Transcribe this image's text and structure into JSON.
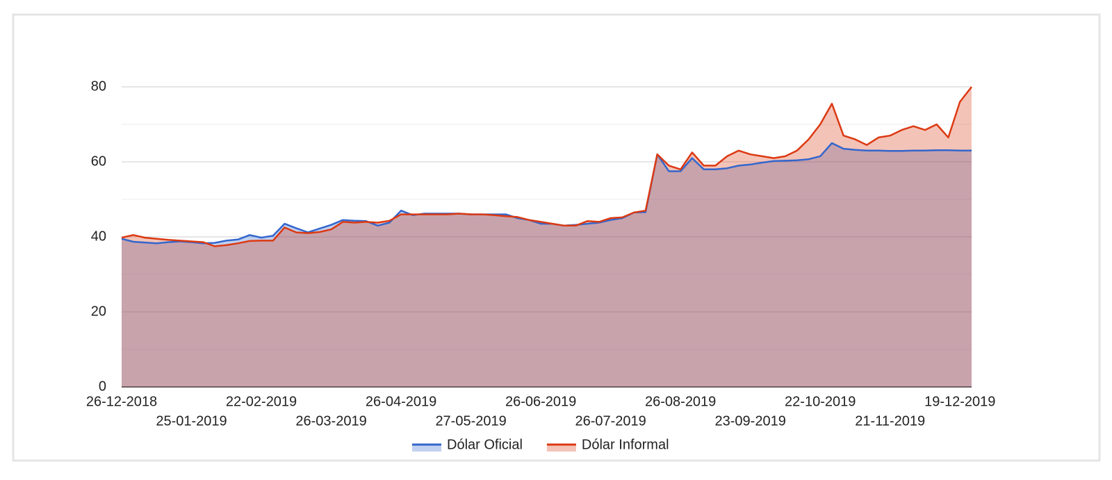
{
  "chart_data": {
    "type": "area",
    "categories": [
      "26-12-2018",
      null,
      null,
      null,
      null,
      null,
      "25-01-2019",
      null,
      null,
      null,
      null,
      null,
      "22-02-2019",
      null,
      null,
      null,
      null,
      null,
      "26-03-2019",
      null,
      null,
      null,
      null,
      null,
      "26-04-2019",
      null,
      null,
      null,
      null,
      null,
      "27-05-2019",
      null,
      null,
      null,
      null,
      null,
      "26-06-2019",
      null,
      null,
      null,
      null,
      null,
      "26-07-2019",
      null,
      null,
      null,
      null,
      null,
      "26-08-2019",
      null,
      null,
      null,
      null,
      null,
      "23-09-2019",
      null,
      null,
      null,
      null,
      null,
      "22-10-2019",
      null,
      null,
      null,
      null,
      null,
      "21-11-2019",
      null,
      null,
      null,
      null,
      null,
      "19-12-2019",
      null
    ],
    "series": [
      {
        "name": "Dólar Oficial",
        "color": "#3366cc",
        "values": [
          39.5,
          38.7,
          38.5,
          38.3,
          38.6,
          38.8,
          38.6,
          38.3,
          38.4,
          39,
          39.3,
          40.5,
          39.8,
          40.3,
          43.5,
          42.3,
          41.2,
          42.2,
          43.2,
          44.5,
          44.3,
          44.2,
          43,
          43.8,
          47,
          45.8,
          46.2,
          46.2,
          46.2,
          46.2,
          46,
          46,
          46,
          46,
          45,
          44.5,
          43.5,
          43.5,
          43,
          43.2,
          43.5,
          43.8,
          44.5,
          45,
          46.5,
          46.6,
          62,
          57.5,
          57.5,
          61,
          58,
          58,
          58.3,
          59,
          59.3,
          59.8,
          60.2,
          60.3,
          60.4,
          60.7,
          61.5,
          65,
          63.5,
          63.2,
          63,
          63,
          62.9,
          62.9,
          63,
          63,
          63.1,
          63.1,
          63,
          63
        ]
      },
      {
        "name": "Dólar Informal",
        "color": "#dc3912",
        "values": [
          39.8,
          40.5,
          39.8,
          39.5,
          39.2,
          39,
          38.8,
          38.6,
          37.5,
          37.8,
          38.3,
          38.9,
          39,
          39,
          42.5,
          41.2,
          41,
          41.3,
          42,
          44,
          43.8,
          44,
          43.8,
          44.3,
          46,
          46,
          46,
          46,
          46,
          46.2,
          46,
          46,
          45.8,
          45.5,
          45.3,
          44.5,
          44,
          43.5,
          43,
          43,
          44.2,
          44,
          45,
          45.2,
          46.5,
          47,
          62,
          59,
          58,
          62.5,
          59,
          59,
          61.5,
          63,
          62,
          61.5,
          61,
          61.5,
          63,
          66,
          70,
          75.5,
          67,
          66,
          64.5,
          66.5,
          67,
          68.5,
          69.5,
          68.5,
          70,
          66.5,
          76,
          80
        ]
      }
    ],
    "ylim": [
      0,
      80
    ],
    "yticks": [
      0,
      20,
      40,
      60,
      80
    ],
    "yminor": [
      10,
      30,
      50,
      70
    ],
    "grid": true,
    "legend": "bottom"
  }
}
